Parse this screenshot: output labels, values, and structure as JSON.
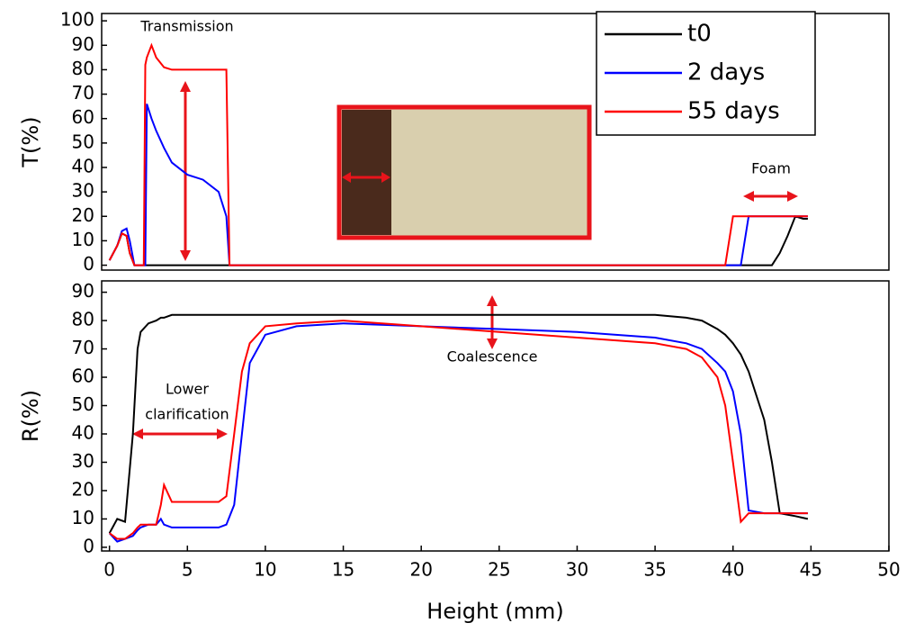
{
  "chart_data": [
    {
      "type": "line",
      "ylabel": "T(%)",
      "legend": "upper right",
      "xlim": [
        -0.5,
        50
      ],
      "ylim": [
        -2,
        103
      ],
      "yticks": [
        0,
        10,
        20,
        30,
        40,
        50,
        60,
        70,
        80,
        90,
        100
      ],
      "annotations": [
        "Transmission",
        "Foam"
      ],
      "x": [
        0,
        0.5,
        0.8,
        1.1,
        1.3,
        1.6,
        2.2,
        2.3,
        2.4,
        2.7,
        3,
        3.5,
        4,
        5,
        6,
        7,
        7.5,
        7.7,
        39.5,
        40,
        40.5,
        41,
        42.5,
        43,
        43.5,
        44,
        44.5,
        44.8
      ],
      "series": [
        {
          "name": "t0",
          "color": "#000000",
          "values": [
            2,
            8,
            13,
            12,
            5,
            0,
            0,
            0,
            0,
            0,
            0,
            0,
            0,
            0,
            0,
            0,
            0,
            0,
            0,
            0,
            0,
            0,
            0,
            5,
            12,
            20,
            19,
            19
          ]
        },
        {
          "name": "2 days",
          "color": "#0000ff",
          "values": [
            2,
            8,
            14,
            15,
            10,
            0,
            0,
            0,
            66,
            60,
            55,
            48,
            42,
            37,
            35,
            30,
            20,
            0,
            0,
            0,
            0,
            20,
            20,
            20,
            20,
            20,
            20,
            20
          ]
        },
        {
          "name": "55 days",
          "color": "#ff0000",
          "values": [
            2,
            8,
            13,
            12,
            5,
            0,
            0,
            82,
            85,
            90,
            85,
            81,
            80,
            80,
            80,
            80,
            80,
            0,
            0,
            20,
            20,
            20,
            20,
            20,
            20,
            20,
            20,
            20
          ]
        }
      ]
    },
    {
      "type": "line",
      "ylabel": "R(%)",
      "xlabel": "Height (mm)",
      "xlim": [
        -0.5,
        50
      ],
      "ylim": [
        -1.3,
        94
      ],
      "yticks": [
        0,
        10,
        20,
        30,
        40,
        50,
        60,
        70,
        80,
        90
      ],
      "xticks": [
        0,
        5,
        10,
        15,
        20,
        25,
        30,
        35,
        40,
        45,
        50
      ],
      "annotations": [
        "Coalescence",
        "Lower",
        "clarification"
      ],
      "x": [
        0,
        0.5,
        1,
        1.5,
        1.8,
        2,
        2.5,
        3,
        3.3,
        3.5,
        4,
        5,
        6,
        7,
        7.5,
        8,
        8.5,
        9,
        10,
        12,
        15,
        20,
        25,
        30,
        35,
        37,
        38,
        39,
        39.5,
        40,
        40.5,
        41,
        42,
        42.5,
        43,
        44,
        44.8
      ],
      "series": [
        {
          "name": "t0",
          "color": "#000000",
          "values": [
            5,
            10,
            9,
            40,
            70,
            76,
            79,
            80,
            81,
            81,
            82,
            82,
            82,
            82,
            82,
            82,
            82,
            82,
            82,
            82,
            82,
            82,
            82,
            82,
            82,
            81,
            80,
            77,
            75,
            72,
            68,
            62,
            45,
            30,
            12,
            11,
            10
          ]
        },
        {
          "name": "2 days",
          "color": "#0000ff",
          "values": [
            5,
            2,
            3,
            4,
            6,
            7,
            8,
            8,
            10,
            8,
            7,
            7,
            7,
            7,
            8,
            15,
            40,
            65,
            75,
            78,
            79,
            78,
            77,
            76,
            74,
            72,
            70,
            65,
            62,
            55,
            40,
            13,
            12,
            12,
            12,
            12,
            12
          ]
        },
        {
          "name": "55 days",
          "color": "#ff0000",
          "values": [
            5,
            3,
            3,
            5,
            7,
            8,
            8,
            8,
            15,
            22,
            16,
            16,
            16,
            16,
            18,
            40,
            62,
            72,
            78,
            79,
            80,
            78,
            76,
            74,
            72,
            70,
            67,
            60,
            50,
            30,
            9,
            12,
            12,
            12,
            12,
            12,
            12
          ]
        }
      ]
    }
  ]
}
